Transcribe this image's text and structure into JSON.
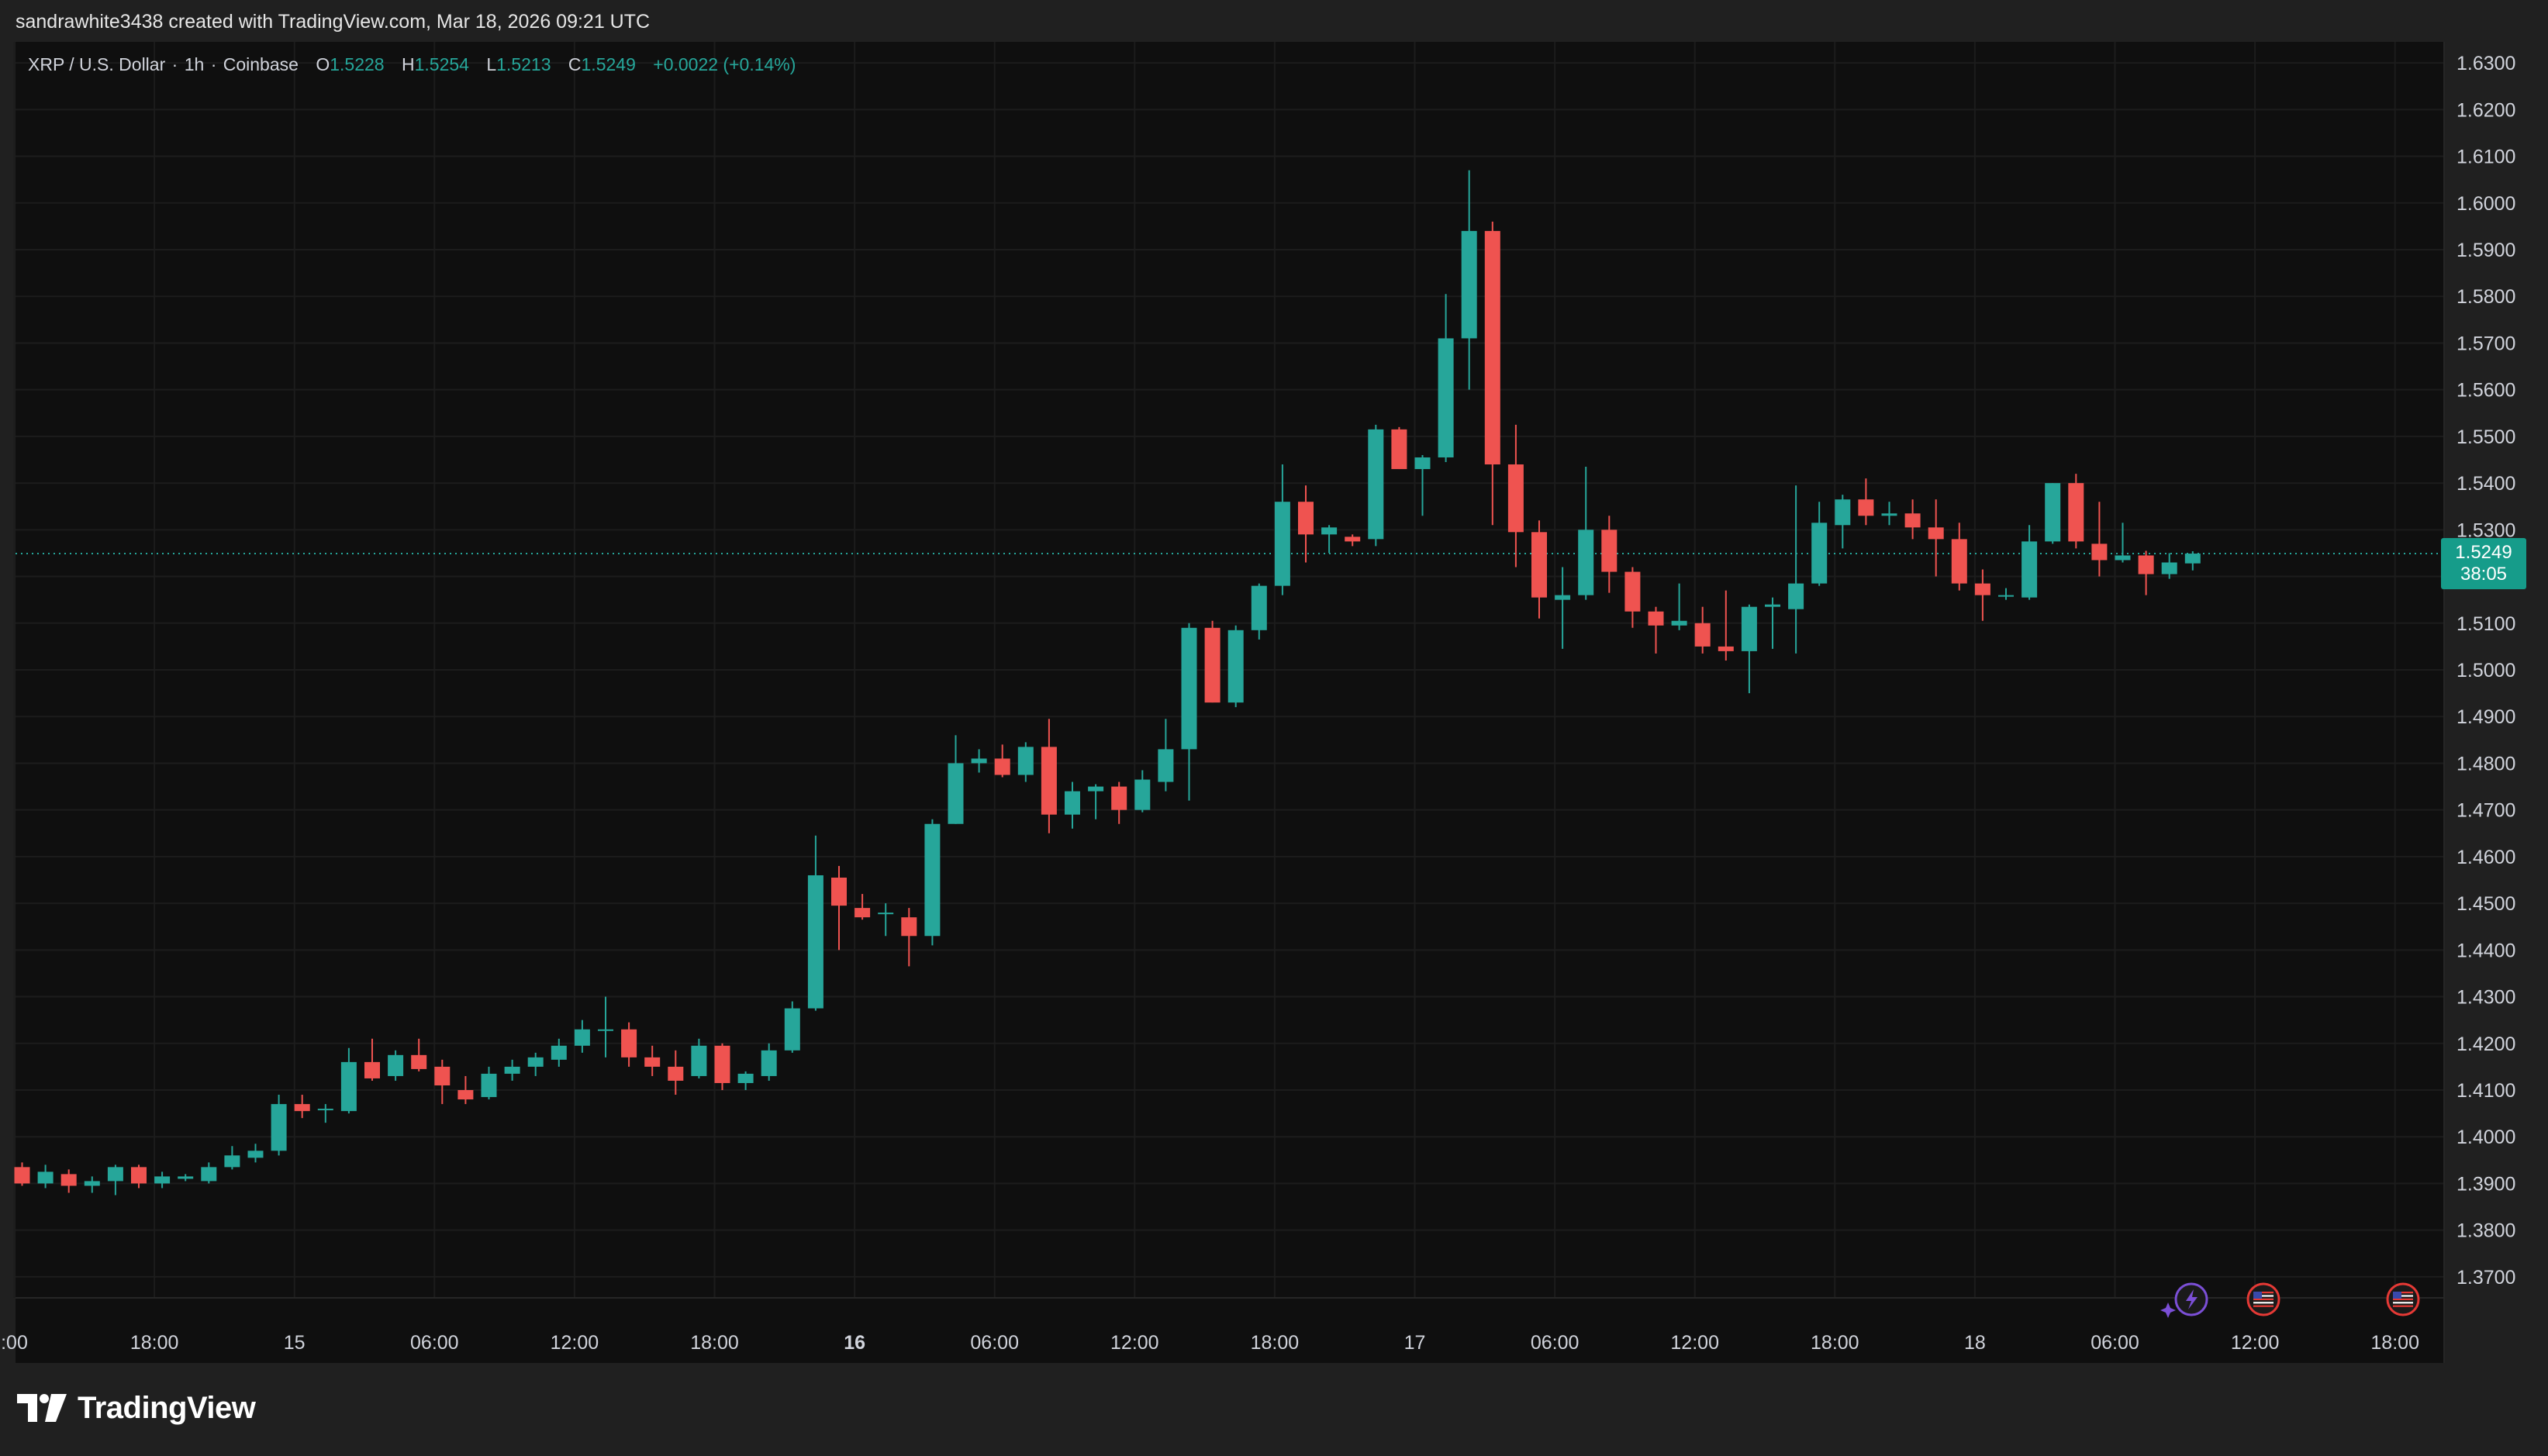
{
  "header": {
    "attribution": "sandrawhite3438 created with TradingView.com, Mar 18, 2026 09:21 UTC"
  },
  "legend": {
    "symbol": "XRP / U.S. Dollar",
    "interval": "1h",
    "exchange": "Coinbase",
    "o_label": "O",
    "o_value": "1.5228",
    "h_label": "H",
    "h_value": "1.5254",
    "l_label": "L",
    "l_value": "1.5213",
    "c_label": "C",
    "c_value": "1.5249",
    "change": "+0.0022 (+0.14%)"
  },
  "price_tag": {
    "price": "1.5249",
    "countdown": "38:05"
  },
  "brand": {
    "name": "TradingView"
  },
  "colors": {
    "up": "#26a69a",
    "down": "#ef5350",
    "background": "#0f0f0f",
    "panel": "#202020",
    "grid": "#1c1c1c",
    "axis_text": "#d1d4dc",
    "last_price_tag": "#169c8a"
  },
  "chart_data": {
    "type": "candlestick",
    "interval": "1h",
    "ylim": [
      1.3655,
      1.6345
    ],
    "y_ticks": [
      1.63,
      1.62,
      1.61,
      1.6,
      1.59,
      1.58,
      1.57,
      1.56,
      1.55,
      1.54,
      1.53,
      1.52,
      1.51,
      1.5,
      1.49,
      1.48,
      1.47,
      1.46,
      1.45,
      1.44,
      1.43,
      1.42,
      1.41,
      1.4,
      1.39,
      1.38,
      1.37
    ],
    "y_tick_labels": [
      "1.6300",
      "1.6200",
      "1.6100",
      "1.6000",
      "1.5900",
      "1.5800",
      "1.5700",
      "1.5600",
      "1.5500",
      "1.5400",
      "1.5300",
      "1.5200",
      "1.5100",
      "1.5000",
      "1.4900",
      "1.4800",
      "1.4700",
      "1.4600",
      "1.4500",
      "1.4400",
      "1.4300",
      "1.4200",
      "1.4100",
      "1.4000",
      "1.3900",
      "1.3800",
      "1.3700"
    ],
    "x_ticks": [
      {
        "label": ":00",
        "bold": false
      },
      {
        "label": "18:00",
        "bold": false
      },
      {
        "label": "15",
        "bold": false
      },
      {
        "label": "06:00",
        "bold": false
      },
      {
        "label": "12:00",
        "bold": false
      },
      {
        "label": "18:00",
        "bold": false
      },
      {
        "label": "16",
        "bold": true
      },
      {
        "label": "06:00",
        "bold": false
      },
      {
        "label": "12:00",
        "bold": false
      },
      {
        "label": "18:00",
        "bold": false
      },
      {
        "label": "17",
        "bold": false
      },
      {
        "label": "06:00",
        "bold": false
      },
      {
        "label": "12:00",
        "bold": false
      },
      {
        "label": "18:00",
        "bold": false
      },
      {
        "label": "18",
        "bold": false
      },
      {
        "label": "06:00",
        "bold": false
      },
      {
        "label": "12:00",
        "bold": false
      },
      {
        "label": "18:00",
        "bold": false
      }
    ],
    "last_price": 1.5249,
    "candles": [
      [
        1.3935,
        1.3945,
        1.3895,
        1.39
      ],
      [
        1.39,
        1.394,
        1.389,
        1.3925
      ],
      [
        1.392,
        1.393,
        1.388,
        1.3895
      ],
      [
        1.3895,
        1.3915,
        1.388,
        1.3905
      ],
      [
        1.3905,
        1.394,
        1.3875,
        1.3935
      ],
      [
        1.3935,
        1.394,
        1.389,
        1.39
      ],
      [
        1.39,
        1.3925,
        1.389,
        1.3915
      ],
      [
        1.391,
        1.392,
        1.3905,
        1.3915
      ],
      [
        1.3905,
        1.3945,
        1.39,
        1.3935
      ],
      [
        1.3935,
        1.398,
        1.393,
        1.396
      ],
      [
        1.3955,
        1.3985,
        1.3945,
        1.397
      ],
      [
        1.397,
        1.409,
        1.396,
        1.407
      ],
      [
        1.407,
        1.409,
        1.404,
        1.4055
      ],
      [
        1.406,
        1.407,
        1.403,
        1.406
      ],
      [
        1.4055,
        1.419,
        1.405,
        1.416
      ],
      [
        1.416,
        1.421,
        1.412,
        1.4125
      ],
      [
        1.413,
        1.4185,
        1.412,
        1.4175
      ],
      [
        1.4175,
        1.421,
        1.414,
        1.4145
      ],
      [
        1.415,
        1.4165,
        1.407,
        1.411
      ],
      [
        1.41,
        1.413,
        1.407,
        1.408
      ],
      [
        1.4085,
        1.415,
        1.408,
        1.4135
      ],
      [
        1.4135,
        1.4165,
        1.412,
        1.415
      ],
      [
        1.415,
        1.418,
        1.413,
        1.417
      ],
      [
        1.4165,
        1.421,
        1.415,
        1.4195
      ],
      [
        1.4195,
        1.425,
        1.418,
        1.423
      ],
      [
        1.423,
        1.43,
        1.417,
        1.423
      ],
      [
        1.423,
        1.4245,
        1.415,
        1.417
      ],
      [
        1.417,
        1.4195,
        1.413,
        1.415
      ],
      [
        1.415,
        1.4185,
        1.409,
        1.412
      ],
      [
        1.413,
        1.421,
        1.4125,
        1.4195
      ],
      [
        1.4195,
        1.42,
        1.41,
        1.4115
      ],
      [
        1.4115,
        1.414,
        1.41,
        1.4135
      ],
      [
        1.413,
        1.42,
        1.412,
        1.4185
      ],
      [
        1.4185,
        1.429,
        1.418,
        1.4275
      ],
      [
        1.4275,
        1.4645,
        1.427,
        1.456
      ],
      [
        1.4555,
        1.458,
        1.44,
        1.4495
      ],
      [
        1.449,
        1.452,
        1.4465,
        1.447
      ],
      [
        1.448,
        1.45,
        1.443,
        1.448
      ],
      [
        1.447,
        1.449,
        1.4365,
        1.443
      ],
      [
        1.443,
        1.468,
        1.441,
        1.467
      ],
      [
        1.467,
        1.486,
        1.467,
        1.48
      ],
      [
        1.48,
        1.483,
        1.478,
        1.481
      ],
      [
        1.481,
        1.484,
        1.477,
        1.4775
      ],
      [
        1.4775,
        1.4845,
        1.476,
        1.4835
      ],
      [
        1.4835,
        1.4895,
        1.465,
        1.469
      ],
      [
        1.469,
        1.476,
        1.466,
        1.474
      ],
      [
        1.474,
        1.4755,
        1.468,
        1.475
      ],
      [
        1.475,
        1.476,
        1.467,
        1.47
      ],
      [
        1.47,
        1.4785,
        1.4695,
        1.4765
      ],
      [
        1.476,
        1.4895,
        1.474,
        1.483
      ],
      [
        1.483,
        1.51,
        1.472,
        1.509
      ],
      [
        1.509,
        1.5105,
        1.493,
        1.493
      ],
      [
        1.493,
        1.5095,
        1.492,
        1.5085
      ],
      [
        1.5085,
        1.5185,
        1.5065,
        1.518
      ],
      [
        1.518,
        1.544,
        1.516,
        1.536
      ],
      [
        1.536,
        1.5395,
        1.523,
        1.529
      ],
      [
        1.529,
        1.531,
        1.525,
        1.5305
      ],
      [
        1.5285,
        1.529,
        1.5265,
        1.5275
      ],
      [
        1.528,
        1.5525,
        1.5265,
        1.5515
      ],
      [
        1.5515,
        1.552,
        1.543,
        1.543
      ],
      [
        1.543,
        1.546,
        1.533,
        1.5455
      ],
      [
        1.5455,
        1.5805,
        1.5445,
        1.571
      ],
      [
        1.571,
        1.607,
        1.56,
        1.594
      ],
      [
        1.594,
        1.596,
        1.531,
        1.544
      ],
      [
        1.544,
        1.5525,
        1.522,
        1.5295
      ],
      [
        1.5295,
        1.532,
        1.511,
        1.5155
      ],
      [
        1.515,
        1.522,
        1.5045,
        1.516
      ],
      [
        1.516,
        1.5435,
        1.515,
        1.53
      ],
      [
        1.53,
        1.533,
        1.5165,
        1.521
      ],
      [
        1.521,
        1.522,
        1.509,
        1.5125
      ],
      [
        1.5125,
        1.5135,
        1.5035,
        1.5095
      ],
      [
        1.5095,
        1.5185,
        1.5085,
        1.5105
      ],
      [
        1.51,
        1.5135,
        1.5035,
        1.505
      ],
      [
        1.505,
        1.517,
        1.502,
        1.504
      ],
      [
        1.504,
        1.514,
        1.495,
        1.5135
      ],
      [
        1.5135,
        1.5155,
        1.5045,
        1.514
      ],
      [
        1.513,
        1.5395,
        1.5035,
        1.5185
      ],
      [
        1.5185,
        1.536,
        1.518,
        1.5315
      ],
      [
        1.531,
        1.5375,
        1.526,
        1.5365
      ],
      [
        1.5365,
        1.541,
        1.531,
        1.533
      ],
      [
        1.533,
        1.536,
        1.531,
        1.5335
      ],
      [
        1.5335,
        1.5365,
        1.528,
        1.5305
      ],
      [
        1.5305,
        1.5365,
        1.52,
        1.528
      ],
      [
        1.528,
        1.5315,
        1.517,
        1.5185
      ],
      [
        1.5185,
        1.5215,
        1.5105,
        1.516
      ],
      [
        1.516,
        1.5175,
        1.515,
        1.516
      ],
      [
        1.5155,
        1.531,
        1.515,
        1.5275
      ],
      [
        1.5275,
        1.54,
        1.527,
        1.54
      ],
      [
        1.54,
        1.542,
        1.526,
        1.5275
      ],
      [
        1.527,
        1.536,
        1.52,
        1.5235
      ],
      [
        1.5235,
        1.5315,
        1.523,
        1.5245
      ],
      [
        1.5245,
        1.5255,
        1.516,
        1.5205
      ],
      [
        1.5205,
        1.525,
        1.5195,
        1.523
      ],
      [
        1.5228,
        1.5254,
        1.5213,
        1.5249
      ]
    ],
    "markers": [
      {
        "name": "earnings-lightning-icon",
        "color": "#7b4fd6"
      },
      {
        "name": "us-flag-event-icon",
        "color": "#e53935"
      },
      {
        "name": "us-flag-event-icon",
        "color": "#e53935"
      }
    ]
  }
}
